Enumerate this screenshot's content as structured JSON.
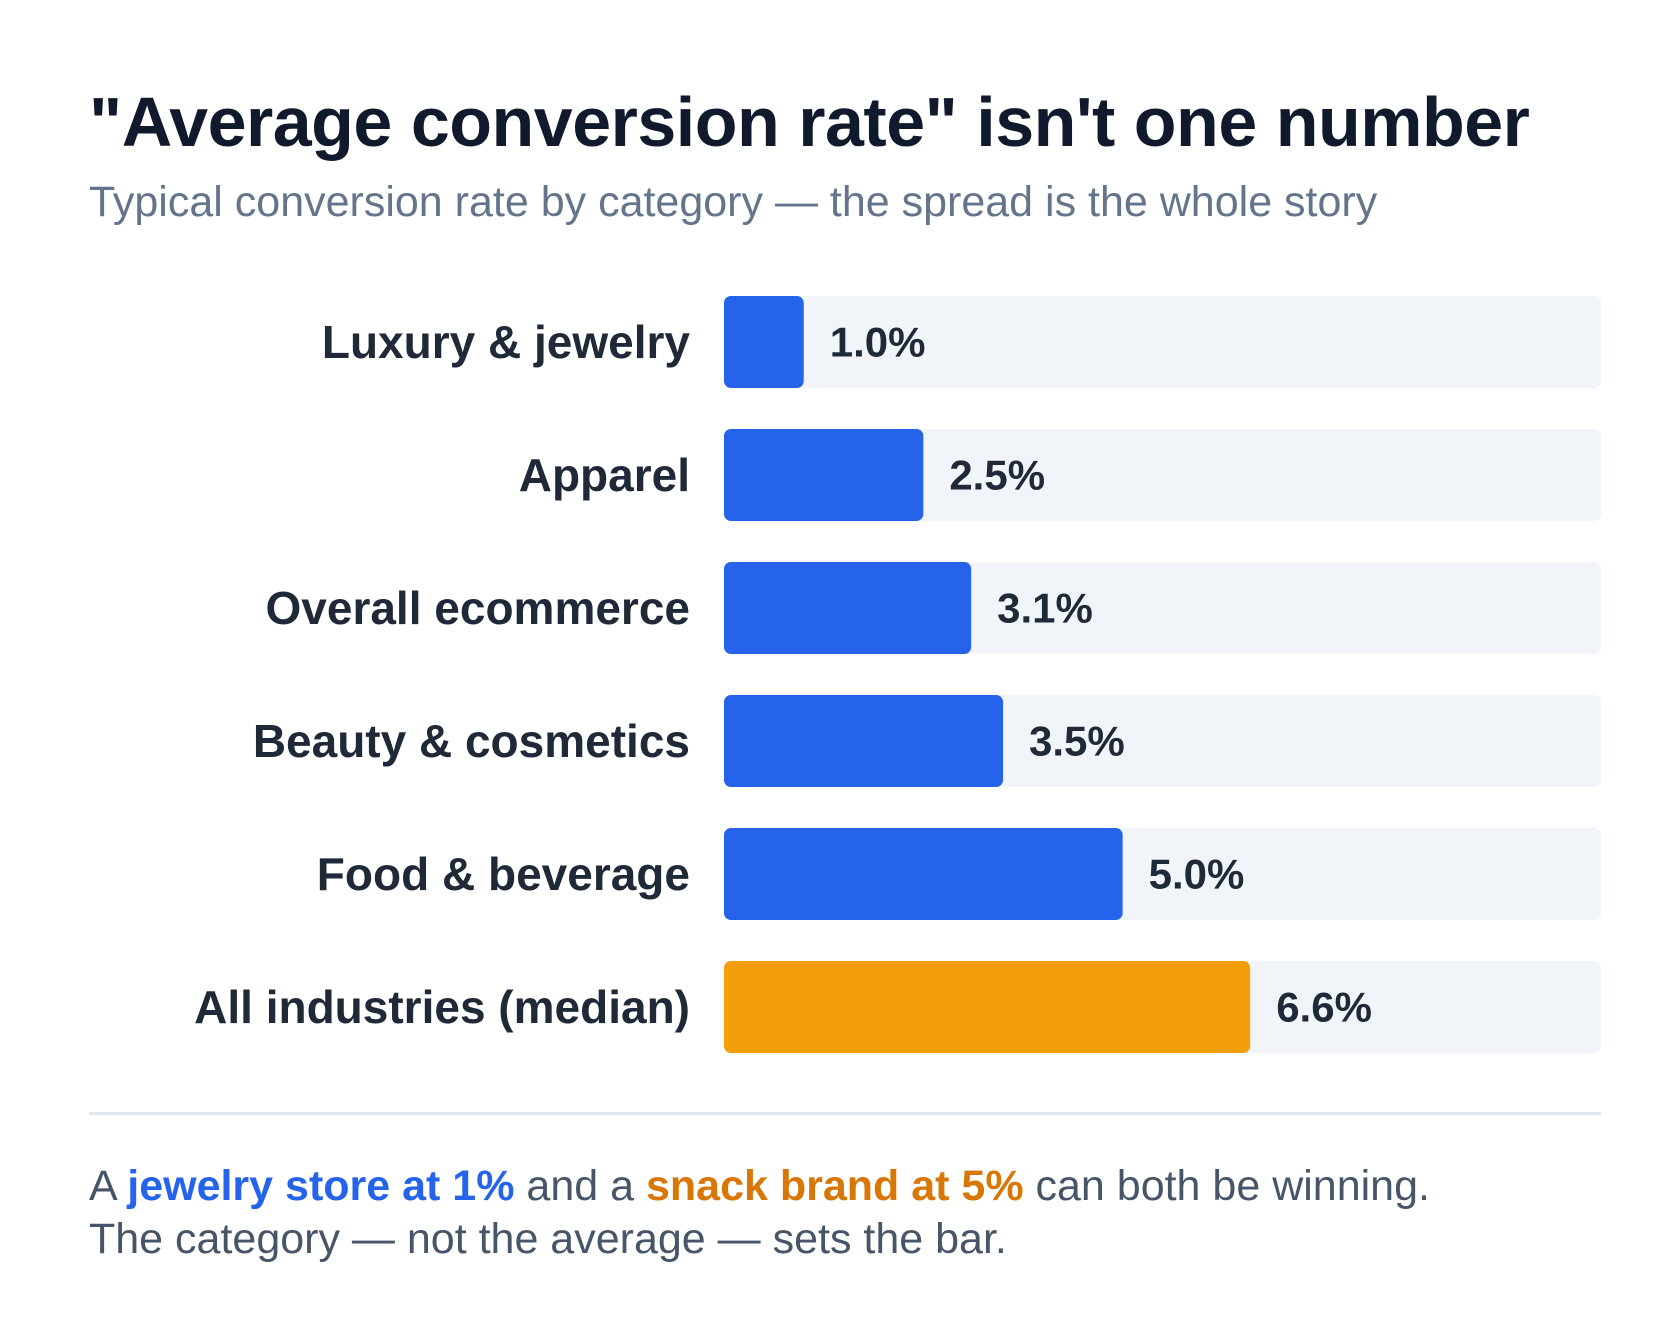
{
  "title": "\"Average conversion rate\" isn't one number",
  "subtitle": "Typical conversion rate by category — the spread is the whole story",
  "colors": {
    "bar": "#2563eb",
    "highlight_bar": "#f59e0b",
    "track": "#f1f5f9",
    "text": "#1f2937",
    "blue_text": "#2563eb",
    "orange_text": "#d97706"
  },
  "chart_data": {
    "type": "bar",
    "orientation": "horizontal",
    "categories": [
      "Luxury & jewelry",
      "Apparel",
      "Overall ecommerce",
      "Beauty & cosmetics",
      "Food & beverage",
      "All industries (median)"
    ],
    "values": [
      1.0,
      2.5,
      3.1,
      3.5,
      5.0,
      6.6
    ],
    "value_labels": [
      "1.0%",
      "2.5%",
      "3.1%",
      "3.5%",
      "5.0%",
      "6.6%"
    ],
    "highlighted_category": "All industries (median)",
    "xlim": [
      0,
      11
    ],
    "grid": false,
    "legend": "none"
  },
  "footer": {
    "line1_a": "A ",
    "line1_b": "jewelry store at 1%",
    "line1_c": " and a ",
    "line1_d": "snack brand at 5%",
    "line1_e": " can both be winning.",
    "line2": "The category — not the average — sets the bar."
  }
}
